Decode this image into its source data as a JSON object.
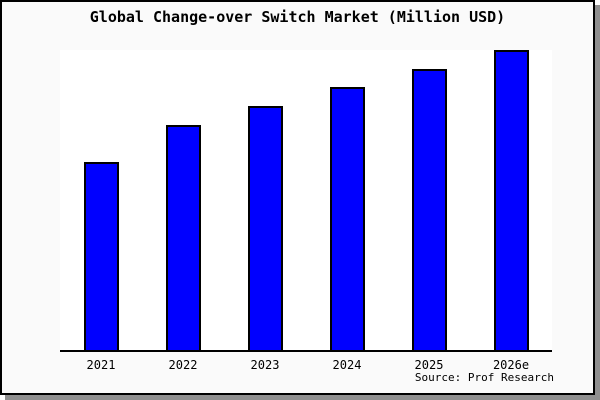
{
  "chart_data": {
    "type": "bar",
    "title": "Global Change-over Switch Market (Million USD)",
    "categories": [
      "2021",
      "2022",
      "2023",
      "2024",
      "2025",
      "2026e"
    ],
    "values": [
      62.7,
      75.0,
      81.3,
      87.7,
      93.7,
      100.0
    ],
    "value_scale": "relative bar height, percent of tallest bar (no y-axis tick labels shown in chart)",
    "xlabel": "",
    "ylabel": "",
    "ylim": [
      0,
      100
    ],
    "grid": false,
    "legend": false,
    "source_note": "Source: Prof Research",
    "colors": {
      "bar_fill": "#0000ff",
      "bar_border": "#000000",
      "axis_line": "#000000",
      "plot_background": "#ffffff",
      "margin_background": "#fafafa",
      "frame_border": "#000000",
      "frame_shadow": "#8f8f8f",
      "text": "#000000"
    }
  }
}
